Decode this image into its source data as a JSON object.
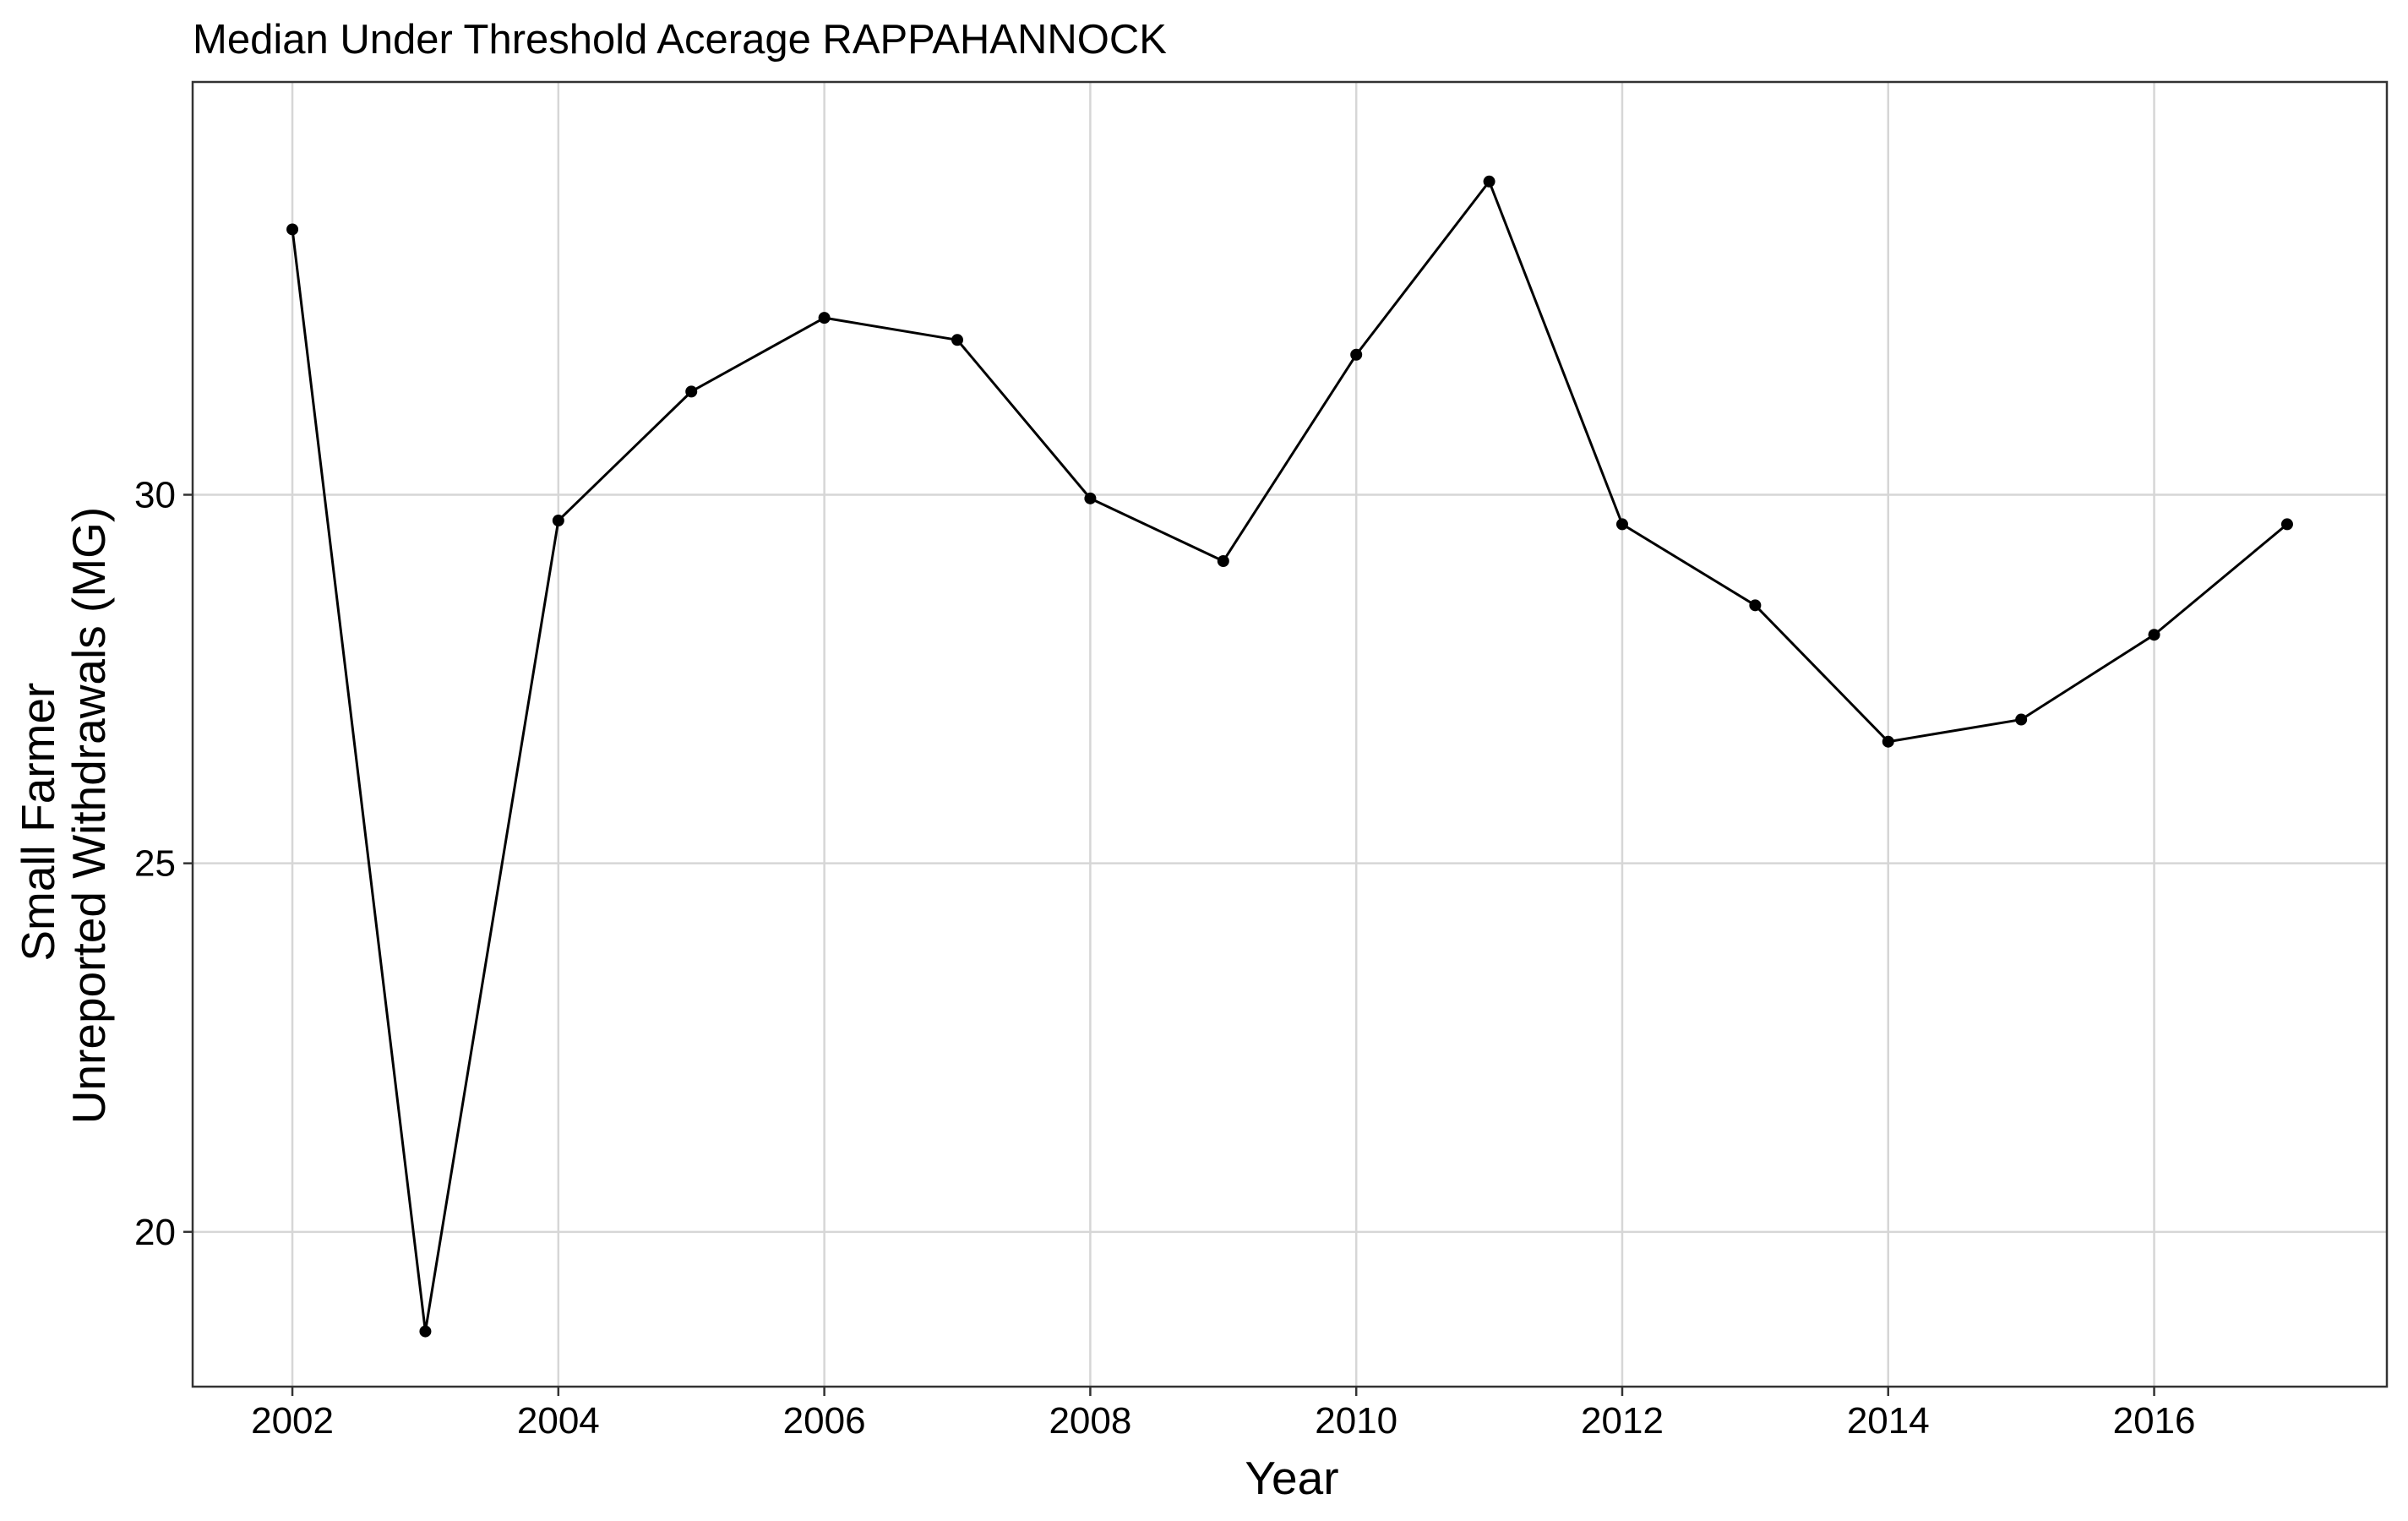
{
  "chart_data": {
    "type": "line",
    "title": "Median Under Threshold Acerage RAPPAHANNOCK",
    "xlabel": "Year",
    "ylabel_lines": [
      "Small Farmer",
      "Unreported Withdrawals (MG)"
    ],
    "x_ticks": [
      2002,
      2004,
      2006,
      2008,
      2010,
      2012,
      2014,
      2016
    ],
    "y_ticks": [
      20,
      25,
      30
    ],
    "xlim": [
      2001.25,
      2017.75
    ],
    "ylim": [
      17.9,
      35.6
    ],
    "grid": true,
    "legend": "none",
    "series": [
      {
        "x": [
          2002,
          2003,
          2004,
          2005,
          2006,
          2007,
          2008,
          2009,
          2010,
          2011,
          2012,
          2013,
          2014,
          2015,
          2016,
          2017
        ],
        "values": [
          33.6,
          18.65,
          29.65,
          31.4,
          32.4,
          32.1,
          29.95,
          29.1,
          31.9,
          34.25,
          29.6,
          28.5,
          26.65,
          26.95,
          28.1,
          29.6
        ]
      }
    ],
    "colors": {
      "line": "#000000",
      "grid": "#d6d6d6",
      "panel_border": "#333333",
      "background": "#ffffff"
    }
  }
}
